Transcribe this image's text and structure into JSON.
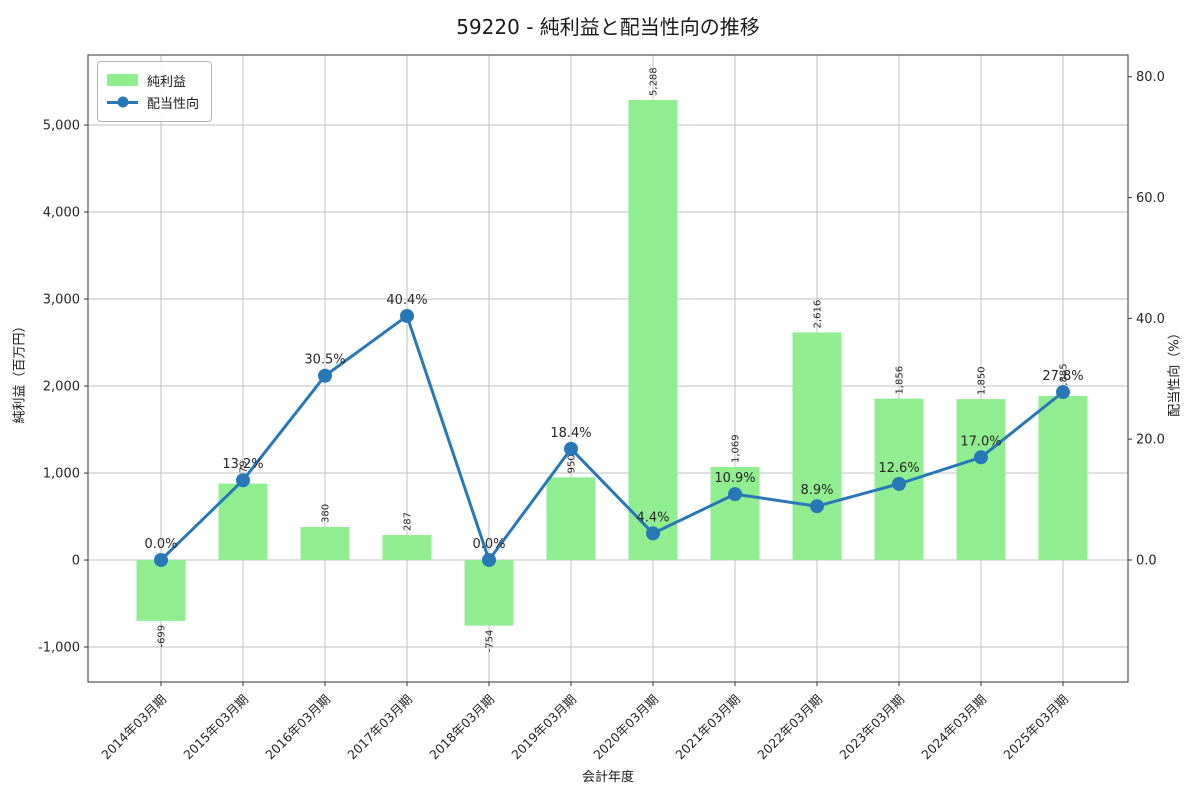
{
  "chart_data": {
    "type": "bar",
    "combo": "bar+line, dual y-axes",
    "title": "59220 - 純利益と配当性向の推移",
    "xlabel": "会計年度",
    "ylabel_left": "純利益（百万円）",
    "ylabel_right": "配当性向（%）",
    "categories": [
      "2014年03月期",
      "2015年03月期",
      "2016年03月期",
      "2017年03月期",
      "2018年03月期",
      "2019年03月期",
      "2020年03月期",
      "2021年03月期",
      "2022年03月期",
      "2023年03月期",
      "2024年03月期",
      "2025年03月期"
    ],
    "series": [
      {
        "name": "純利益",
        "type": "bar",
        "axis": "left",
        "color": "#90ee90",
        "values": [
          -699,
          879,
          380,
          287,
          -754,
          950,
          5288,
          1069,
          2616,
          1856,
          1850,
          1885
        ],
        "labels": [
          "-699",
          "879",
          "380",
          "287",
          "-754",
          "950",
          "5,288",
          "1,069",
          "2,616",
          "1,856",
          "1,850",
          "1,885"
        ]
      },
      {
        "name": "配当性向",
        "type": "line",
        "axis": "right",
        "color": "#2878b8",
        "label_color": "#4d9ad5",
        "values": [
          0.0,
          13.2,
          30.5,
          40.4,
          0.0,
          18.4,
          4.4,
          10.9,
          8.9,
          12.6,
          17.0,
          27.8
        ],
        "labels": [
          "0.0%",
          "13.2%",
          "30.5%",
          "40.4%",
          "0.0%",
          "18.4%",
          "4.4%",
          "10.9%",
          "8.9%",
          "12.6%",
          "17.0%",
          "27.8%"
        ]
      }
    ],
    "left_axis": {
      "ticks": [
        -1000,
        0,
        1000,
        2000,
        3000,
        4000,
        5000
      ],
      "tick_labels": [
        "-1,000",
        "0",
        "1,000",
        "2,000",
        "3,000",
        "4,000",
        "5,000"
      ],
      "range": [
        -1402,
        5805
      ]
    },
    "right_axis": {
      "ticks": [
        0,
        20,
        40,
        60,
        80
      ],
      "tick_labels": [
        "0.0",
        "20.0",
        "40.0",
        "60.0",
        "80.0"
      ],
      "range": [
        -20.2,
        83.6
      ]
    },
    "legend": [
      "純利益",
      "配当性向"
    ],
    "legend_position": "upper left",
    "grid": true,
    "grid_color": "#c2c2c2",
    "spine_color": "#333333",
    "text_color": "#1a1a1a"
  }
}
